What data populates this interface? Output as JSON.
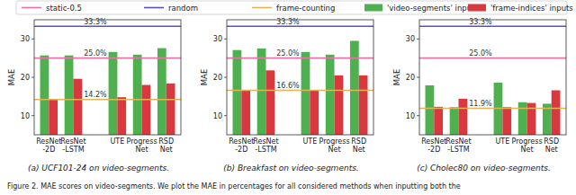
{
  "chart_data": [
    {
      "type": "bar",
      "title": "(a) UCF101-24 on video-segments.",
      "y_label": "MAE",
      "categories": [
        "ResNet\n-2D",
        "ResNet\n-LSTM",
        "UTE",
        "Progress\nNet",
        "RSD\nNet"
      ],
      "series": [
        {
          "name": "'video-segments' inputs",
          "color": "#4fb04f",
          "values": [
            25.7,
            25.7,
            26.6,
            25.9,
            27.6
          ]
        },
        {
          "name": "'frame-indices' inputs",
          "color": "#d9383f",
          "values": [
            14.2,
            19.6,
            14.8,
            18.0,
            18.4
          ]
        }
      ],
      "reference_lines": [
        {
          "name": "static-0.5",
          "value": 25.0,
          "label": "25.0%",
          "color": "#e873a8"
        },
        {
          "name": "random",
          "value": 33.3,
          "label": "33.3%",
          "color": "#5a4fc4"
        },
        {
          "name": "frame-counting",
          "value": 14.2,
          "label": "14.2%",
          "color": "#e3b455"
        }
      ],
      "ylim": [
        5,
        35
      ],
      "yticks": [
        10,
        20,
        30
      ],
      "legend": "top"
    },
    {
      "type": "bar",
      "title": "(b) Breakfast on video-segments.",
      "y_label": "MAE",
      "categories": [
        "ResNet\n-2D",
        "ResNet\n-LSTM",
        "UTE",
        "Progress\nNet",
        "RSD\nNet"
      ],
      "series": [
        {
          "color": "#4fb04f",
          "values": [
            27.1,
            27.5,
            26.6,
            25.9,
            29.5
          ]
        },
        {
          "color": "#d9383f",
          "values": [
            16.6,
            21.8,
            16.6,
            20.5,
            20.5
          ]
        }
      ],
      "reference_lines": [
        {
          "value": 25.0,
          "label": "25.0%",
          "color": "#e873a8"
        },
        {
          "value": 33.3,
          "label": "33.3%",
          "color": "#5a4fc4"
        },
        {
          "value": 16.6,
          "label": "16.6%",
          "color": "#e3b455"
        }
      ],
      "ylim": [
        5,
        35
      ],
      "yticks": [
        10,
        20,
        30
      ]
    },
    {
      "type": "bar",
      "title": "(c) Cholec80 on video-segments.",
      "y_label": "MAE",
      "categories": [
        "ResNet\n-2D",
        "ResNet\n-LSTM",
        "UTE",
        "Progress\nNet",
        "RSD\nNet"
      ],
      "series": [
        {
          "color": "#4fb04f",
          "values": [
            17.9,
            12.2,
            18.6,
            13.5,
            13.1
          ]
        },
        {
          "color": "#d9383f",
          "values": [
            12.3,
            14.4,
            12.2,
            13.3,
            16.6
          ]
        }
      ],
      "reference_lines": [
        {
          "value": 25.0,
          "label": "25.0%",
          "color": "#e873a8"
        },
        {
          "value": 33.3,
          "label": "33.3%",
          "color": "#5a4fc4"
        },
        {
          "value": 11.9,
          "label": "11.9%",
          "color": "#e3b455"
        }
      ],
      "ylim": [
        5,
        35
      ],
      "yticks": [
        10,
        20,
        30
      ]
    }
  ],
  "caption": "Figure 2. MAE scores on video-segments. We plot the MAE in percentages for all considered methods when inputting both the"
}
